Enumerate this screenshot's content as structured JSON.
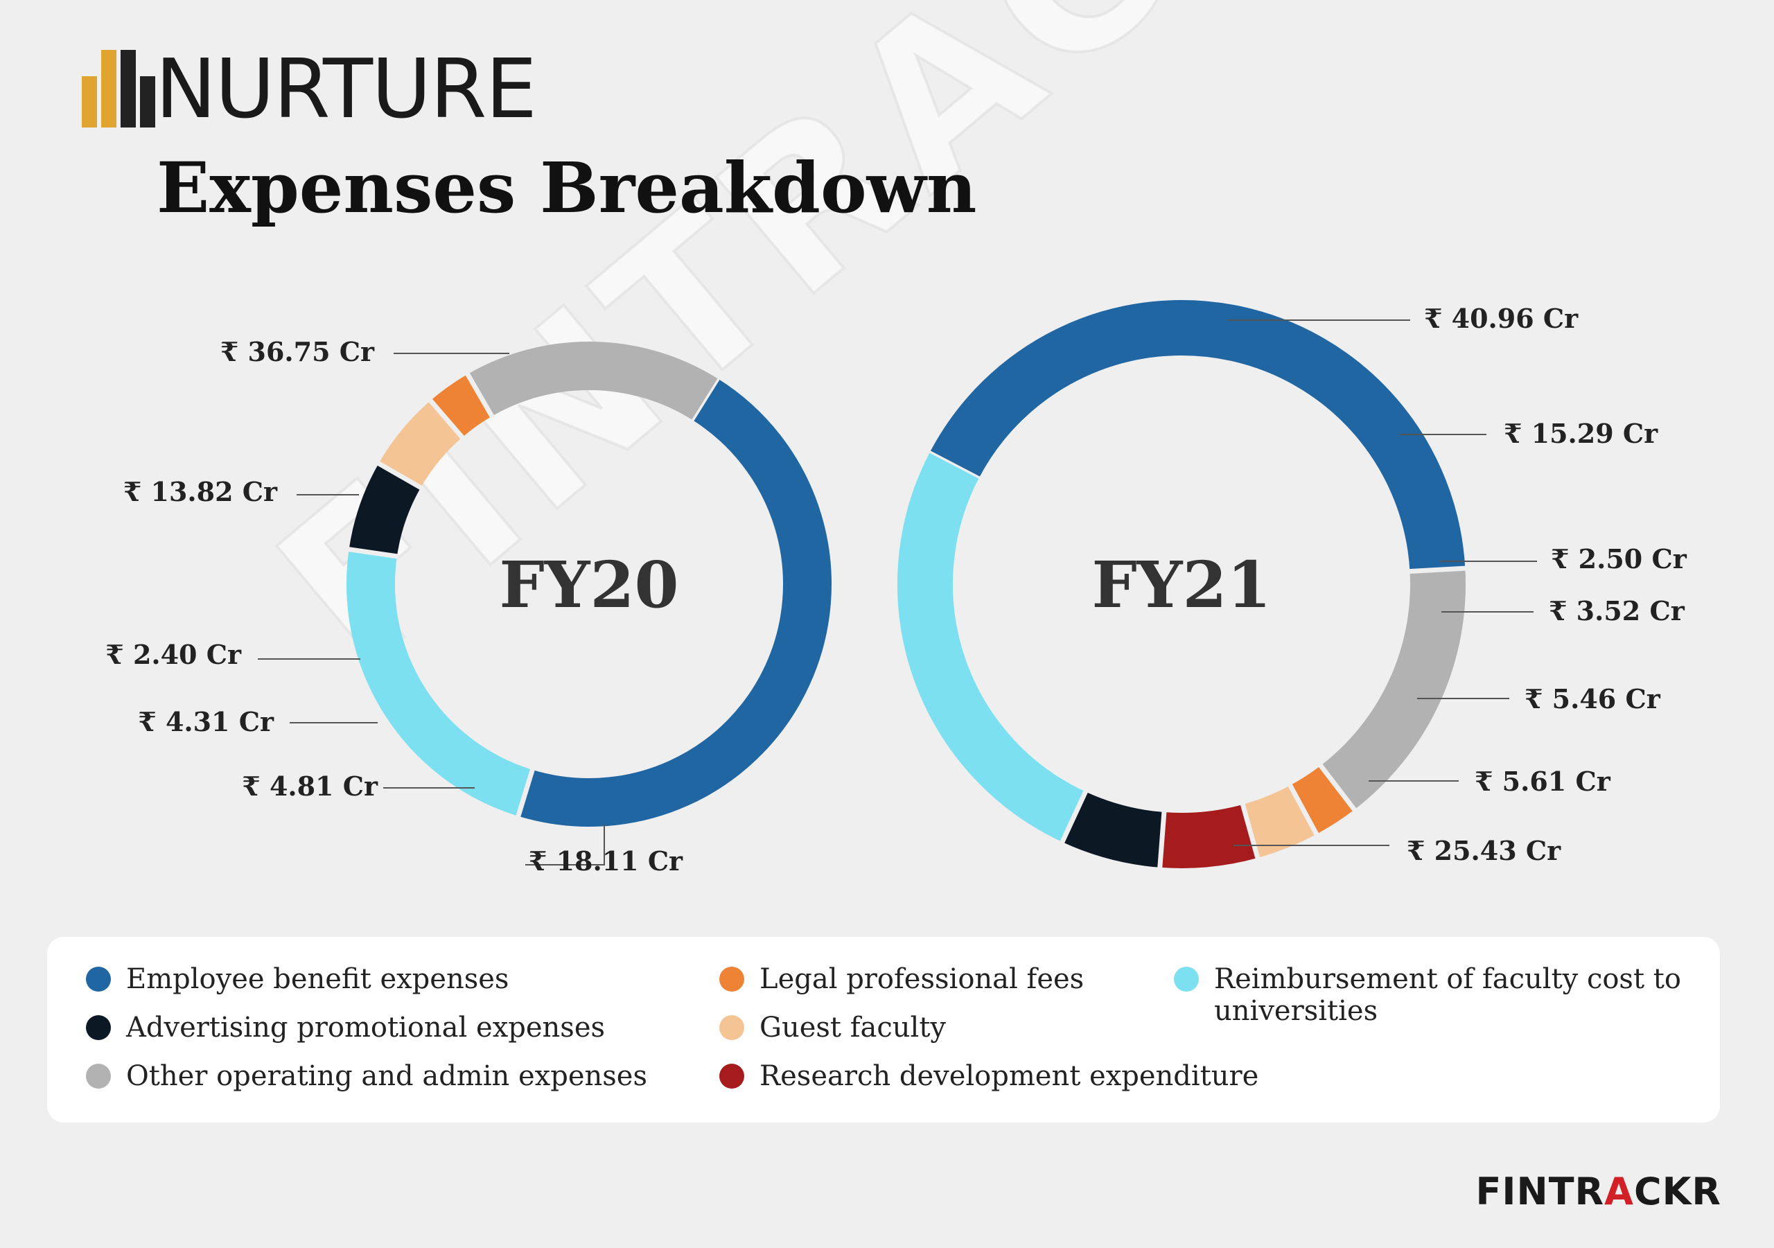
{
  "brand_logo": {
    "text": "NURTURE",
    "colors": [
      "#e0a531",
      "#222222"
    ]
  },
  "title": "Expenses Breakdown",
  "colors": {
    "employee": "#1f66a3",
    "other": "#b2b2b2",
    "legal": "#ee8336",
    "guest": "#f5c494",
    "research": "#a61c1c",
    "advertising": "#0d1825",
    "reimbursement": "#7de0f0"
  },
  "legend": [
    {
      "label": "Employee benefit expenses",
      "color": "#1f66a3"
    },
    {
      "label": "Advertising promotional expenses",
      "color": "#0d1825"
    },
    {
      "label": "Other operating and admin expenses",
      "color": "#b2b2b2"
    },
    {
      "label": "Legal professional fees",
      "color": "#ee8336"
    },
    {
      "label": "Guest faculty",
      "color": "#f5c494"
    },
    {
      "label": "Research development expenditure",
      "color": "#a61c1c"
    },
    {
      "label": "Reimbursement of faculty cost to universities",
      "color": "#7de0f0"
    }
  ],
  "chart_data": [
    {
      "type": "pie",
      "title": "FY20",
      "unit": "Cr",
      "slices": [
        {
          "name": "Employee benefit expenses",
          "value": 36.75,
          "label": "₹ 36.75 Cr"
        },
        {
          "name": "Reimbursement of faculty cost to universities",
          "value": 18.11,
          "label": "₹ 18.11 Cr"
        },
        {
          "name": "Advertising promotional expenses",
          "value": 4.81,
          "label": "₹ 4.81 Cr"
        },
        {
          "name": "Guest faculty",
          "value": 4.31,
          "label": "₹ 4.31 Cr"
        },
        {
          "name": "Legal professional fees",
          "value": 2.4,
          "label": "₹ 2.40 Cr"
        },
        {
          "name": "Other operating and admin expenses",
          "value": 13.82,
          "label": "₹ 13.82 Cr"
        }
      ]
    },
    {
      "type": "pie",
      "title": "FY21",
      "unit": "Cr",
      "slices": [
        {
          "name": "Employee benefit expenses",
          "value": 40.96,
          "label": "₹ 40.96 Cr"
        },
        {
          "name": "Other operating and admin expenses",
          "value": 15.29,
          "label": "₹ 15.29 Cr"
        },
        {
          "name": "Legal professional fees",
          "value": 2.5,
          "label": "₹ 2.50 Cr"
        },
        {
          "name": "Guest faculty",
          "value": 3.52,
          "label": "₹ 3.52 Cr"
        },
        {
          "name": "Research development expenditure",
          "value": 5.46,
          "label": "₹ 5.46 Cr"
        },
        {
          "name": "Advertising promotional expenses",
          "value": 5.61,
          "label": "₹ 5.61 Cr"
        },
        {
          "name": "Reimbursement of faculty cost to universities",
          "value": 25.43,
          "label": "₹ 25.43 Cr"
        }
      ]
    }
  ],
  "watermark": "FINTRACKR",
  "footer_brand": {
    "prefix": "FINTR",
    "accent": "A",
    "suffix": "CKR",
    "color": "#1a1a1a",
    "accent_color": "#d22027"
  }
}
